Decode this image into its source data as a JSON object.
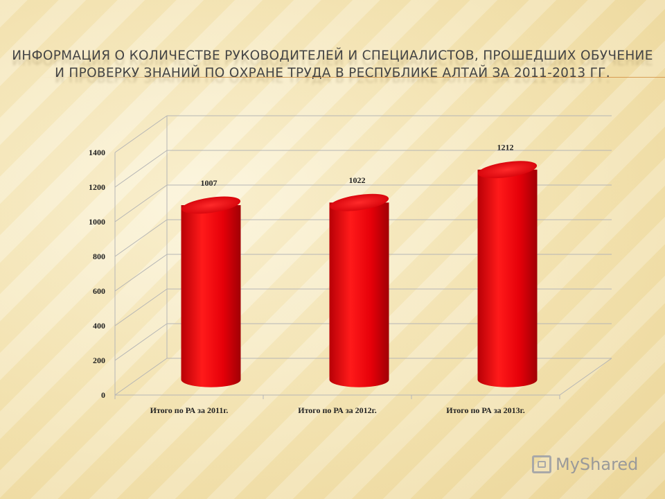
{
  "slide": {
    "title_line1": "Информация о количестве руководителей и специалистов, прошедших обучение",
    "title_line2": "и проверку знаний по охране труда в Республике Алтай за 2011-2013 гг.",
    "watermark": "MyShared"
  },
  "chart_data": {
    "type": "bar",
    "style": "3d-cylinder",
    "categories": [
      "Итого по РА за 2011г.",
      "Итого по РА за 2012г.",
      "Итого по РА за 2013г."
    ],
    "values": [
      1007,
      1022,
      1212
    ],
    "data_labels": [
      "1007",
      "1022",
      "1212"
    ],
    "y_ticks": [
      "0",
      "200",
      "400",
      "600",
      "800",
      "1000",
      "1200",
      "1400"
    ],
    "ylim": [
      0,
      1400
    ],
    "grid": true,
    "bar_color": "#e8000a",
    "title": "",
    "xlabel": "",
    "ylabel": ""
  }
}
